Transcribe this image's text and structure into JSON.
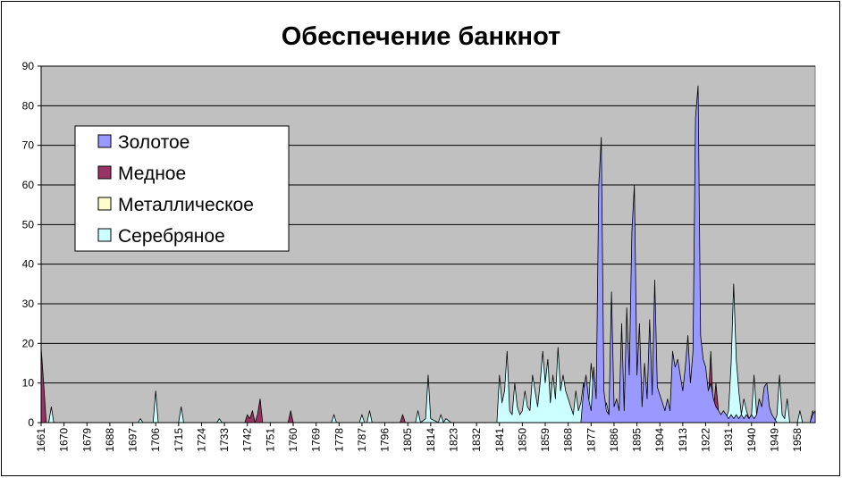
{
  "chart_data": {
    "type": "area",
    "title": "Обеспечение банкнот",
    "xlabel": "",
    "ylabel": "",
    "xlim": [
      1661,
      1965
    ],
    "ylim": [
      0,
      90
    ],
    "yticks": [
      0,
      10,
      20,
      30,
      40,
      50,
      60,
      70,
      80,
      90
    ],
    "xticks": [
      1661,
      1670,
      1679,
      1688,
      1697,
      1706,
      1715,
      1724,
      1733,
      1742,
      1751,
      1760,
      1769,
      1778,
      1787,
      1796,
      1805,
      1814,
      1823,
      1832,
      1841,
      1850,
      1859,
      1868,
      1877,
      1886,
      1895,
      1904,
      1913,
      1922,
      1931,
      1940,
      1949,
      1958
    ],
    "grid": true,
    "legend_position": "upper-left",
    "plot_background": "#c0c0c0",
    "series": [
      {
        "name": "Серебряное",
        "color": "#ccffff",
        "points": [
          [
            1661,
            0
          ],
          [
            1664,
            0
          ],
          [
            1665,
            4
          ],
          [
            1666,
            0
          ],
          [
            1699,
            0
          ],
          [
            1700,
            1
          ],
          [
            1701,
            0
          ],
          [
            1705,
            0
          ],
          [
            1706,
            8
          ],
          [
            1707,
            0
          ],
          [
            1715,
            0
          ],
          [
            1716,
            4
          ],
          [
            1717,
            0
          ],
          [
            1730,
            0
          ],
          [
            1731,
            1
          ],
          [
            1732,
            0
          ],
          [
            1775,
            0
          ],
          [
            1776,
            2
          ],
          [
            1777,
            0
          ],
          [
            1786,
            0
          ],
          [
            1787,
            2
          ],
          [
            1788,
            0
          ],
          [
            1789,
            0
          ],
          [
            1790,
            3
          ],
          [
            1791,
            0
          ],
          [
            1808,
            0
          ],
          [
            1809,
            3
          ],
          [
            1810,
            0
          ],
          [
            1812,
            1
          ],
          [
            1813,
            12
          ],
          [
            1814,
            1
          ],
          [
            1817,
            0
          ],
          [
            1818,
            2
          ],
          [
            1819,
            0
          ],
          [
            1820,
            1
          ],
          [
            1822,
            0
          ],
          [
            1840,
            0
          ],
          [
            1841,
            12
          ],
          [
            1842,
            5
          ],
          [
            1843,
            8
          ],
          [
            1844,
            18
          ],
          [
            1845,
            3
          ],
          [
            1846,
            2
          ],
          [
            1847,
            10
          ],
          [
            1848,
            4
          ],
          [
            1849,
            2
          ],
          [
            1850,
            3
          ],
          [
            1851,
            8
          ],
          [
            1852,
            4
          ],
          [
            1853,
            3
          ],
          [
            1854,
            12
          ],
          [
            1855,
            8
          ],
          [
            1856,
            4
          ],
          [
            1857,
            10
          ],
          [
            1858,
            18
          ],
          [
            1859,
            10
          ],
          [
            1860,
            16
          ],
          [
            1861,
            5
          ],
          [
            1862,
            12
          ],
          [
            1863,
            6
          ],
          [
            1864,
            19
          ],
          [
            1865,
            8
          ],
          [
            1866,
            12
          ],
          [
            1867,
            8
          ],
          [
            1868,
            6
          ],
          [
            1869,
            4
          ],
          [
            1870,
            2
          ],
          [
            1871,
            8
          ],
          [
            1872,
            3
          ],
          [
            1873,
            5
          ],
          [
            1874,
            10
          ],
          [
            1875,
            3
          ],
          [
            1876,
            4
          ],
          [
            1877,
            15
          ],
          [
            1878,
            8
          ],
          [
            1879,
            2
          ],
          [
            1880,
            4
          ],
          [
            1881,
            3
          ],
          [
            1882,
            2
          ],
          [
            1883,
            5
          ],
          [
            1884,
            2
          ],
          [
            1885,
            4
          ],
          [
            1886,
            1
          ],
          [
            1887,
            2
          ],
          [
            1888,
            4
          ],
          [
            1889,
            1
          ],
          [
            1890,
            2
          ],
          [
            1891,
            1
          ],
          [
            1892,
            3
          ],
          [
            1893,
            1
          ],
          [
            1894,
            2
          ],
          [
            1895,
            1
          ],
          [
            1896,
            2
          ],
          [
            1897,
            1
          ],
          [
            1898,
            2
          ],
          [
            1899,
            1
          ],
          [
            1900,
            2
          ],
          [
            1901,
            1
          ],
          [
            1902,
            2
          ],
          [
            1903,
            1
          ],
          [
            1904,
            2
          ],
          [
            1905,
            1
          ],
          [
            1906,
            2
          ],
          [
            1907,
            1
          ],
          [
            1908,
            2
          ],
          [
            1909,
            1
          ],
          [
            1910,
            3
          ],
          [
            1911,
            1
          ],
          [
            1912,
            2
          ],
          [
            1913,
            1
          ],
          [
            1914,
            2
          ],
          [
            1915,
            1
          ],
          [
            1916,
            2
          ],
          [
            1917,
            1
          ],
          [
            1918,
            2
          ],
          [
            1919,
            1
          ],
          [
            1920,
            1
          ],
          [
            1921,
            1
          ],
          [
            1922,
            2
          ],
          [
            1923,
            1
          ],
          [
            1924,
            1
          ],
          [
            1925,
            2
          ],
          [
            1926,
            1
          ],
          [
            1927,
            2
          ],
          [
            1928,
            1
          ],
          [
            1929,
            2
          ],
          [
            1930,
            1
          ],
          [
            1931,
            3
          ],
          [
            1932,
            15
          ],
          [
            1933,
            35
          ],
          [
            1934,
            16
          ],
          [
            1935,
            8
          ],
          [
            1936,
            2
          ],
          [
            1937,
            6
          ],
          [
            1938,
            3
          ],
          [
            1939,
            1
          ],
          [
            1940,
            2
          ],
          [
            1941,
            12
          ],
          [
            1942,
            2
          ],
          [
            1943,
            1
          ],
          [
            1944,
            2
          ],
          [
            1945,
            1
          ],
          [
            1946,
            2
          ],
          [
            1947,
            1
          ],
          [
            1948,
            1
          ],
          [
            1949,
            0
          ],
          [
            1950,
            2
          ],
          [
            1951,
            12
          ],
          [
            1952,
            2
          ],
          [
            1953,
            1
          ],
          [
            1954,
            6
          ],
          [
            1955,
            0
          ],
          [
            1958,
            0
          ],
          [
            1959,
            3
          ],
          [
            1960,
            0
          ],
          [
            1963,
            0
          ],
          [
            1964,
            3
          ],
          [
            1965,
            0
          ]
        ]
      },
      {
        "name": "Металлическое",
        "color": "#ffffcc",
        "points": [
          [
            1661,
            0
          ],
          [
            1965,
            0
          ]
        ]
      },
      {
        "name": "Медное",
        "color": "#993366",
        "points": [
          [
            1661,
            19
          ],
          [
            1662,
            10
          ],
          [
            1663,
            0
          ],
          [
            1741,
            0
          ],
          [
            1742,
            2
          ],
          [
            1743,
            1
          ],
          [
            1744,
            3
          ],
          [
            1745,
            0
          ],
          [
            1746,
            2
          ],
          [
            1747,
            6
          ],
          [
            1748,
            0
          ],
          [
            1758,
            0
          ],
          [
            1759,
            3
          ],
          [
            1760,
            0
          ],
          [
            1802,
            0
          ],
          [
            1803,
            2
          ],
          [
            1804,
            0
          ],
          [
            1917,
            0
          ],
          [
            1918,
            1
          ],
          [
            1919,
            6
          ],
          [
            1920,
            10
          ],
          [
            1921,
            3
          ],
          [
            1922,
            12
          ],
          [
            1923,
            5
          ],
          [
            1924,
            18
          ],
          [
            1925,
            3
          ],
          [
            1926,
            10
          ],
          [
            1927,
            3
          ],
          [
            1928,
            1
          ],
          [
            1929,
            0
          ],
          [
            1965,
            0
          ]
        ]
      },
      {
        "name": "Золотое",
        "color": "#9999ff",
        "points": [
          [
            1661,
            0
          ],
          [
            1873,
            0
          ],
          [
            1874,
            8
          ],
          [
            1875,
            12
          ],
          [
            1876,
            6
          ],
          [
            1877,
            3
          ],
          [
            1878,
            14
          ],
          [
            1879,
            6
          ],
          [
            1880,
            60
          ],
          [
            1881,
            72
          ],
          [
            1882,
            8
          ],
          [
            1883,
            3
          ],
          [
            1884,
            2
          ],
          [
            1885,
            33
          ],
          [
            1886,
            4
          ],
          [
            1887,
            6
          ],
          [
            1888,
            3
          ],
          [
            1889,
            25
          ],
          [
            1890,
            3
          ],
          [
            1891,
            29
          ],
          [
            1892,
            12
          ],
          [
            1893,
            48
          ],
          [
            1894,
            60
          ],
          [
            1895,
            12
          ],
          [
            1896,
            25
          ],
          [
            1897,
            4
          ],
          [
            1898,
            15
          ],
          [
            1899,
            6
          ],
          [
            1900,
            26
          ],
          [
            1901,
            7
          ],
          [
            1902,
            36
          ],
          [
            1903,
            9
          ],
          [
            1904,
            7
          ],
          [
            1905,
            5
          ],
          [
            1906,
            3
          ],
          [
            1907,
            6
          ],
          [
            1908,
            3
          ],
          [
            1909,
            18
          ],
          [
            1910,
            14
          ],
          [
            1911,
            16
          ],
          [
            1912,
            12
          ],
          [
            1913,
            8
          ],
          [
            1914,
            14
          ],
          [
            1915,
            22
          ],
          [
            1916,
            10
          ],
          [
            1917,
            18
          ],
          [
            1918,
            77
          ],
          [
            1919,
            85
          ],
          [
            1920,
            22
          ],
          [
            1921,
            16
          ],
          [
            1922,
            14
          ],
          [
            1923,
            8
          ],
          [
            1924,
            10
          ],
          [
            1925,
            6
          ],
          [
            1926,
            4
          ],
          [
            1927,
            3
          ],
          [
            1928,
            2
          ],
          [
            1929,
            3
          ],
          [
            1930,
            2
          ],
          [
            1931,
            1
          ],
          [
            1932,
            2
          ],
          [
            1933,
            1
          ],
          [
            1934,
            2
          ],
          [
            1935,
            1
          ],
          [
            1936,
            2
          ],
          [
            1937,
            1
          ],
          [
            1938,
            2
          ],
          [
            1939,
            1
          ],
          [
            1940,
            2
          ],
          [
            1941,
            1
          ],
          [
            1942,
            2
          ],
          [
            1943,
            6
          ],
          [
            1944,
            4
          ],
          [
            1945,
            9
          ],
          [
            1946,
            10
          ],
          [
            1947,
            4
          ],
          [
            1948,
            2
          ],
          [
            1949,
            1
          ],
          [
            1950,
            0
          ],
          [
            1963,
            0
          ],
          [
            1964,
            2
          ],
          [
            1965,
            3
          ]
        ]
      }
    ],
    "legend_order": [
      "Золотое",
      "Медное",
      "Металлическое",
      "Серебряное"
    ]
  }
}
